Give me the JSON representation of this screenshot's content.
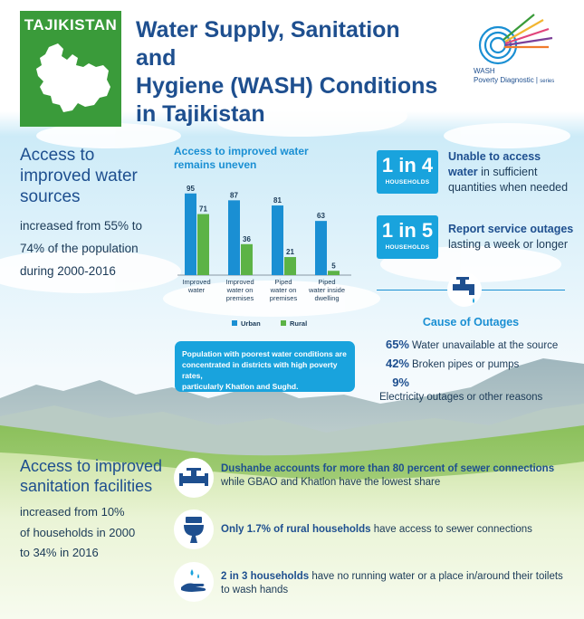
{
  "header": {
    "country": "TAJIKISTAN",
    "title_lines": [
      "Water Supply, Sanitation and",
      "Hygiene (WASH) Conditions",
      "in Tajikistan"
    ],
    "logo_line1": "WASH",
    "logo_line2": "Poverty Diagnostic",
    "logo_series": "series"
  },
  "access_water": {
    "title_lines": [
      "Access to",
      "improved water",
      "sources"
    ],
    "text_lines": [
      "increased from 55% to",
      "74% of the population",
      "during 2000-2016"
    ]
  },
  "chart_section": {
    "title_lines": [
      "Access to improved water",
      "remains uneven"
    ]
  },
  "chart_data": {
    "type": "bar",
    "categories": [
      [
        "Improved",
        "water"
      ],
      [
        "Improved",
        "water on",
        "premises"
      ],
      [
        "Piped",
        "water on",
        "premises"
      ],
      [
        "Piped",
        "water inside",
        "dwelling"
      ]
    ],
    "series": [
      {
        "name": "Urban",
        "values": [
          95,
          87,
          81,
          63
        ],
        "color": "#1a8fd3"
      },
      {
        "name": "Rural",
        "values": [
          71,
          36,
          21,
          5
        ],
        "color": "#5cb346"
      }
    ],
    "ylim": [
      0,
      100
    ],
    "legend": "bottom"
  },
  "poverty_box": {
    "lines": [
      "Population with poorest water conditions are",
      "concentrated in districts with high poverty rates,",
      "particularly Khatlon and Sughd."
    ]
  },
  "stats": [
    {
      "num": "1 in 4",
      "sub": "HOUSEHOLDS",
      "bold_lines": [
        "Unable to access",
        "water"
      ],
      "rest_first": " in sufficient",
      "rest_lines": [
        "quantities when needed"
      ]
    },
    {
      "num": "1 in 5",
      "sub": "HOUSEHOLDS",
      "bold_lines": [
        "Report service outages"
      ],
      "rest_first": "",
      "rest_lines": [
        "lasting a week or longer"
      ]
    }
  ],
  "outages": {
    "title": "Cause of Outages",
    "items": [
      {
        "pct": "65%",
        "label": "Water unavailable at the source"
      },
      {
        "pct": "42%",
        "label": "Broken pipes or pumps"
      },
      {
        "pct": "9%",
        "label": "Electricity outages or other reasons"
      }
    ]
  },
  "sanitation": {
    "title_lines": [
      "Access to improved",
      "sanitation facilities"
    ],
    "text_lines": [
      "increased from 10%",
      "of households in 2000",
      "to 34% in 2016"
    ],
    "items": [
      {
        "bold": "Dushanbe accounts for more than 80 percent of sewer connections",
        "rest": "while GBAO and Khatlon have the lowest share",
        "icon": "pipe-valve-icon"
      },
      {
        "bold": "Only 1.7% of rural households",
        "rest": " have access to sewer connections",
        "icon": "toilet-icon"
      },
      {
        "bold": "2 in 3 households",
        "rest": " have no running water or a place in/around their toilets",
        "rest2": "to wash hands",
        "icon": "hand-wash-icon"
      }
    ]
  },
  "colors": {
    "blue_dark": "#1e4f8f",
    "blue": "#1a8fd3",
    "green": "#5cb346",
    "sky": "#b6e3f5"
  }
}
